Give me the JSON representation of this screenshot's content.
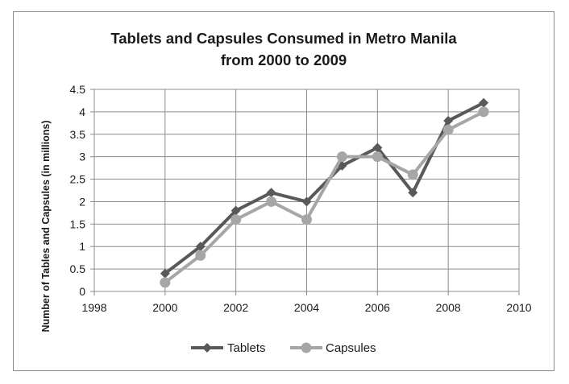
{
  "chart_data": {
    "type": "line",
    "title_line1": "Tablets and Capsules Consumed in Metro Manila",
    "title_line2": "from 2000 to 2009",
    "xlabel": "",
    "ylabel": "Number of Tables and Capsules (in millions)",
    "xlim": [
      1998,
      2010
    ],
    "ylim": [
      0,
      4.5
    ],
    "x_ticks": [
      1998,
      2000,
      2002,
      2004,
      2006,
      2008,
      2010
    ],
    "y_ticks": [
      0,
      0.5,
      1,
      1.5,
      2,
      2.5,
      3,
      3.5,
      4,
      4.5
    ],
    "x_tick_labels": [
      "1998",
      "2000",
      "2002",
      "2004",
      "2006",
      "2008",
      "2010"
    ],
    "y_tick_labels": [
      "0",
      "0.5",
      "1",
      "1.5",
      "2",
      "2.5",
      "3",
      "3.5",
      "4",
      "4.5"
    ],
    "grid": true,
    "legend_position": "bottom",
    "x": [
      2000,
      2001,
      2002,
      2003,
      2004,
      2005,
      2006,
      2007,
      2008,
      2009
    ],
    "series": [
      {
        "name": "Tablets",
        "marker": "diamond",
        "color": "#595959",
        "values": [
          0.4,
          1.0,
          1.8,
          2.2,
          2.0,
          2.8,
          3.2,
          2.2,
          3.8,
          4.2
        ]
      },
      {
        "name": "Capsules",
        "marker": "circle",
        "color": "#a6a6a6",
        "values": [
          0.2,
          0.8,
          1.6,
          2.0,
          1.6,
          3.0,
          3.0,
          2.6,
          3.6,
          4.0
        ]
      }
    ]
  }
}
